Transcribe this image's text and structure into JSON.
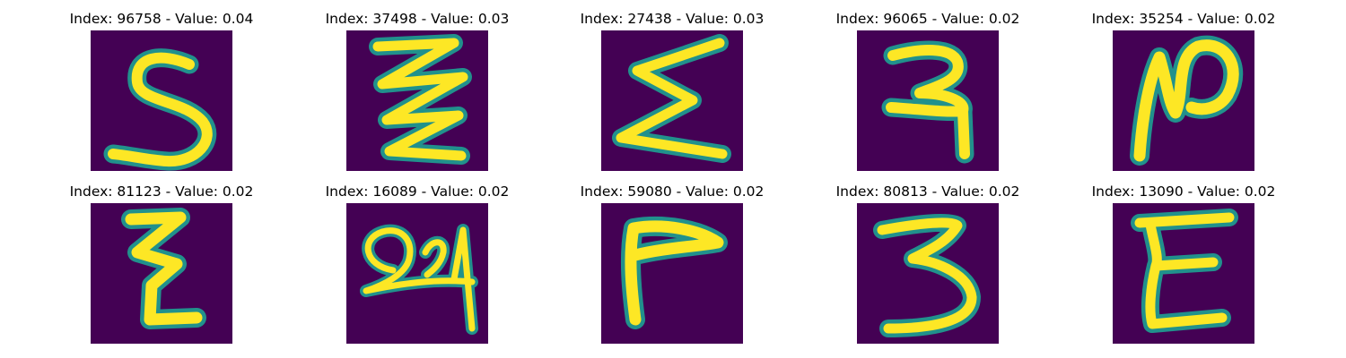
{
  "panels": [
    {
      "index_label": "Index: 96758 - Value: 0.04",
      "depicts": "handwritten-5"
    },
    {
      "index_label": "Index: 37498 - Value: 0.03",
      "depicts": "handwritten-zigzag"
    },
    {
      "index_label": "Index: 27438 - Value: 0.03",
      "depicts": "handwritten-zigzag-sigma"
    },
    {
      "index_label": "Index: 96065 - Value: 0.02",
      "depicts": "handwritten-devanagari-ra"
    },
    {
      "index_label": "Index: 35254 - Value: 0.02",
      "depicts": "handwritten-loop-n"
    },
    {
      "index_label": "Index: 81123 - Value: 0.02",
      "depicts": "handwritten-zigzag-vertical"
    },
    {
      "index_label": "Index: 16089 - Value: 0.02",
      "depicts": "handwritten-q24"
    },
    {
      "index_label": "Index: 59080 - Value: 0.02",
      "depicts": "handwritten-corner-r"
    },
    {
      "index_label": "Index: 80813 - Value: 0.02",
      "depicts": "handwritten-3"
    },
    {
      "index_label": "Index: 13090 - Value: 0.02",
      "depicts": "handwritten-E"
    }
  ],
  "colors": {
    "background": "#440154",
    "stroke_core": "#fde725",
    "stroke_edge": "#21918c",
    "title_text": "#000000"
  }
}
